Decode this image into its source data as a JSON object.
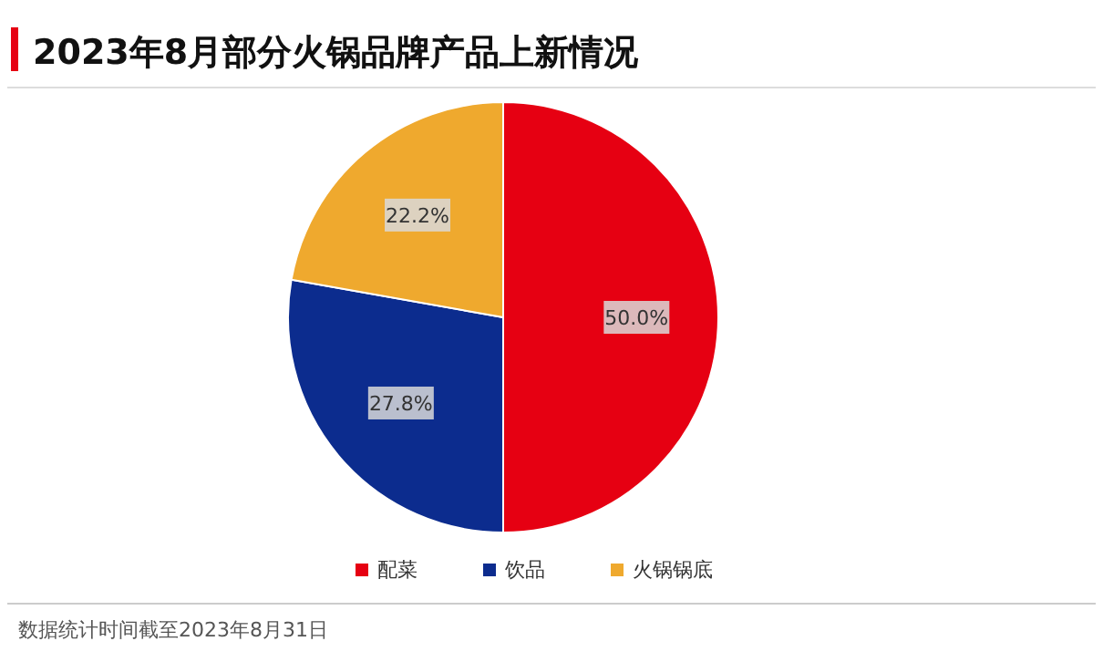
{
  "chart_data": {
    "type": "pie",
    "title": "2023年8月部分火锅品牌产品上新情况",
    "categories": [
      "配菜",
      "饮品",
      "火锅锅底"
    ],
    "values": [
      50.0,
      27.8,
      22.2
    ],
    "colors": [
      "#e60012",
      "#0c2c8e",
      "#efa92e"
    ],
    "value_labels": [
      "50.0%",
      "27.8%",
      "22.2%"
    ],
    "legend": "bottom",
    "annotations": [
      "数据统计时间截至2023年8月31日"
    ]
  }
}
